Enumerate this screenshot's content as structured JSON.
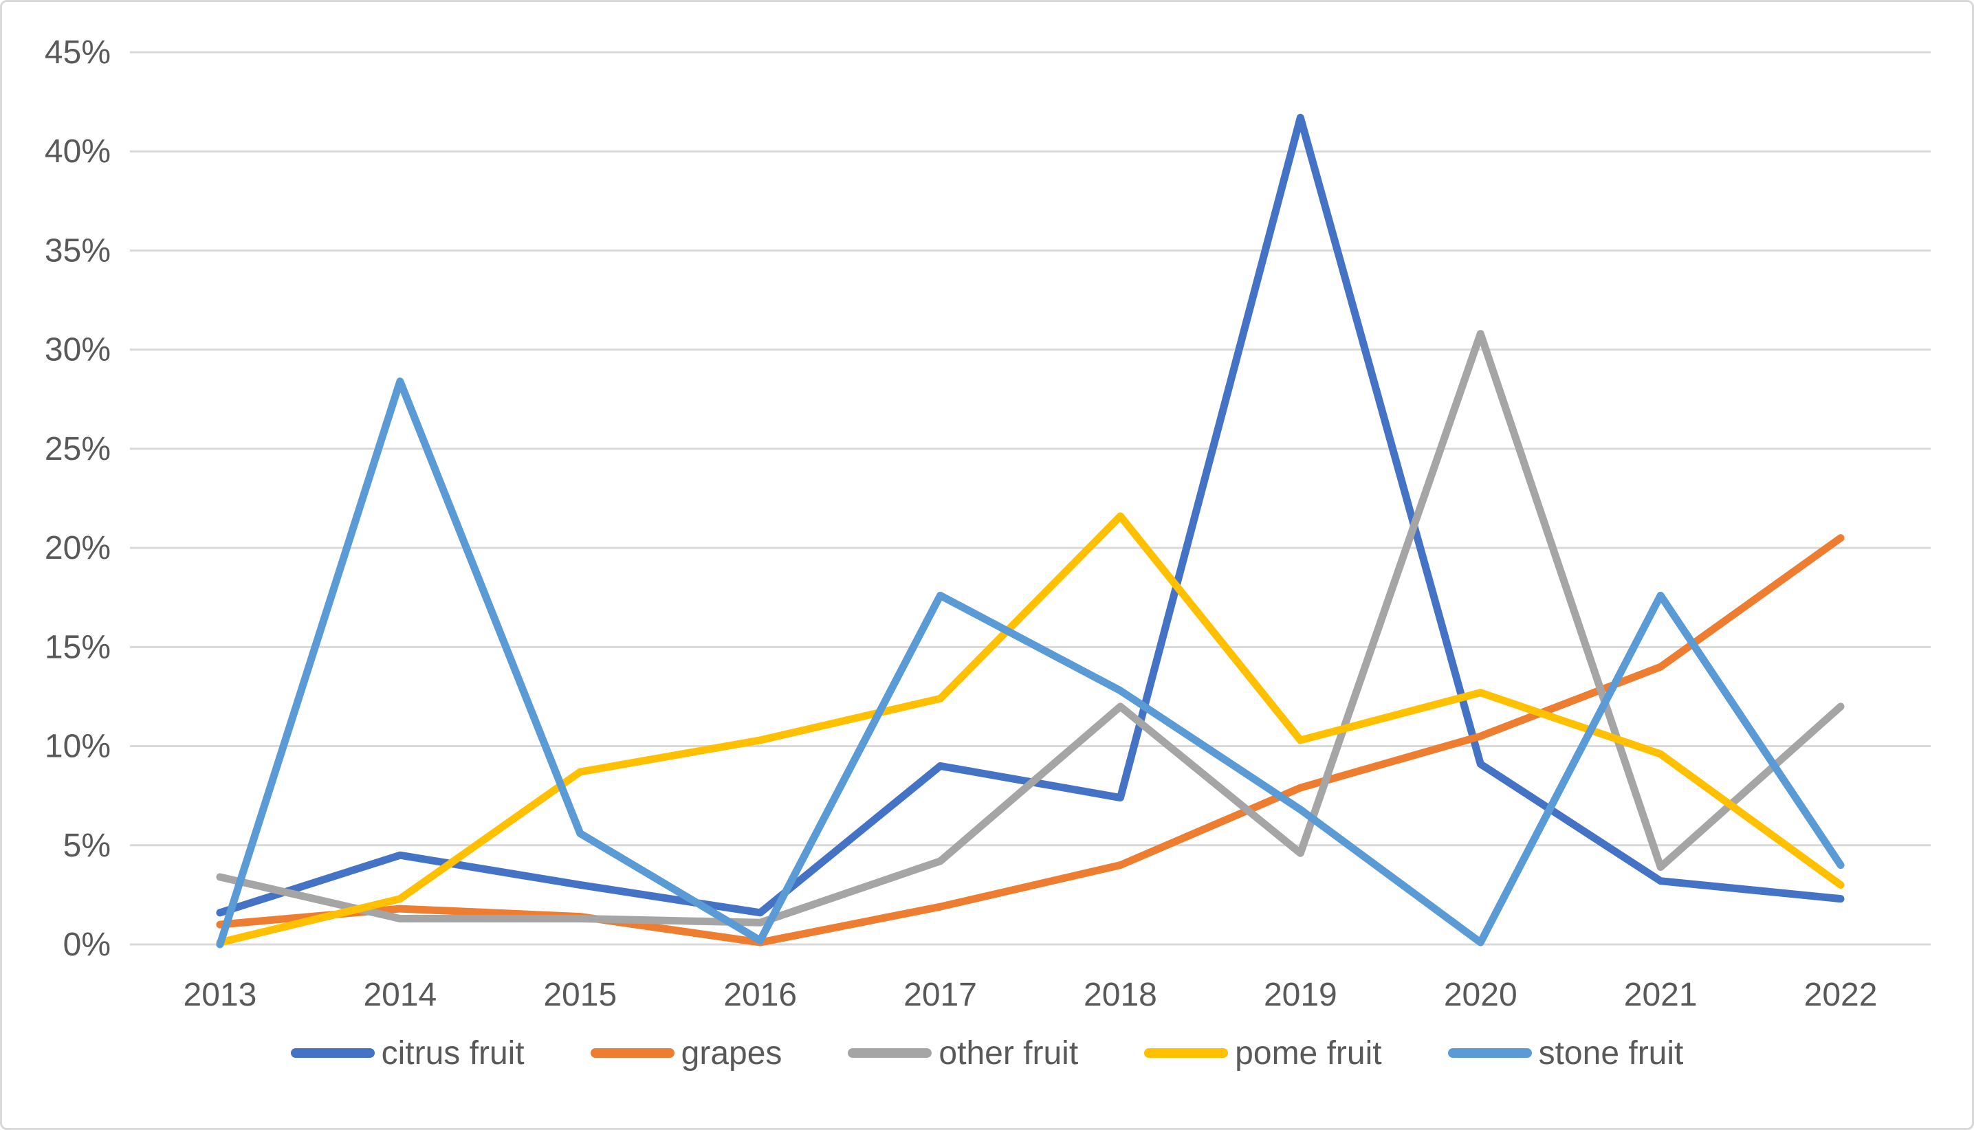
{
  "chart_data": {
    "type": "line",
    "categories": [
      "2013",
      "2014",
      "2015",
      "2016",
      "2017",
      "2018",
      "2019",
      "2020",
      "2021",
      "2022"
    ],
    "series": [
      {
        "name": "citrus fruit",
        "color": "#4472C4",
        "values": [
          1.6,
          4.5,
          3.0,
          1.6,
          9.0,
          7.4,
          41.7,
          9.1,
          3.2,
          2.3
        ]
      },
      {
        "name": "grapes",
        "color": "#ED7D31",
        "values": [
          1.0,
          1.8,
          1.4,
          0.1,
          1.9,
          4.0,
          7.9,
          10.5,
          14.0,
          20.5
        ]
      },
      {
        "name": "other fruit",
        "color": "#A5A5A5",
        "values": [
          3.4,
          1.3,
          1.3,
          1.1,
          4.2,
          12.0,
          4.6,
          30.8,
          3.9,
          12.0
        ]
      },
      {
        "name": "pome fruit",
        "color": "#FFC000",
        "values": [
          0.1,
          2.3,
          8.7,
          10.3,
          12.4,
          21.6,
          10.3,
          12.7,
          9.6,
          3.0
        ]
      },
      {
        "name": "stone fruit",
        "color": "#5B9BD5",
        "values": [
          0.0,
          28.4,
          5.6,
          0.2,
          17.6,
          12.8,
          6.8,
          0.1,
          17.6,
          4.0
        ]
      }
    ],
    "xlabel": "",
    "ylabel": "",
    "ylim": [
      0,
      45
    ],
    "ytick_step": 5,
    "ytick_labels": [
      "0%",
      "5%",
      "10%",
      "15%",
      "20%",
      "25%",
      "30%",
      "35%",
      "40%",
      "45%"
    ],
    "grid": true,
    "gridline_color": "#D9D9D9",
    "axis_text_color": "#595959",
    "background_color": "#FFFFFF",
    "border_color": "#D9D9D9",
    "legend_position": "bottom"
  }
}
